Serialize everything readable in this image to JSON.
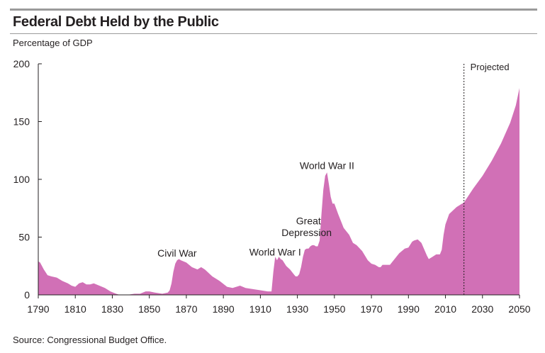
{
  "header": {
    "title": "Federal Debt Held by the Public",
    "subtitle": "Percentage of GDP"
  },
  "footer": {
    "source": "Source: Congressional Budget Office."
  },
  "colors": {
    "area_fill": "#d170b6",
    "axis": "#231f20",
    "rule": "#9b9b9b"
  },
  "chart_data": {
    "type": "area",
    "title": "Federal Debt Held by the Public",
    "ylabel": "Percentage of GDP",
    "xlabel": "",
    "xlim": [
      1790,
      2050
    ],
    "ylim": [
      0,
      200
    ],
    "x_ticks": [
      1790,
      1810,
      1830,
      1850,
      1870,
      1890,
      1910,
      1930,
      1950,
      1970,
      1990,
      2010,
      2030,
      2050
    ],
    "y_ticks": [
      0,
      50,
      100,
      150,
      200
    ],
    "grid": false,
    "projection_start": 2020,
    "projection_label": "Projected",
    "annotations": [
      {
        "label": "Civil War",
        "x": 1865,
        "y": 33
      },
      {
        "label": "World War I",
        "x": 1918,
        "y": 34
      },
      {
        "label": "Great",
        "x": 1936,
        "y": 61
      },
      {
        "label": "Depression",
        "x": 1935,
        "y": 51
      },
      {
        "label": "World War II",
        "x": 1946,
        "y": 109
      }
    ],
    "series": [
      {
        "name": "Federal Debt Held by the Public",
        "x": [
          1790,
          1791,
          1793,
          1795,
          1797,
          1800,
          1803,
          1806,
          1808,
          1810,
          1812,
          1814,
          1816,
          1818,
          1820,
          1823,
          1826,
          1829,
          1832,
          1834,
          1838,
          1842,
          1845,
          1848,
          1850,
          1853,
          1857,
          1860,
          1861,
          1862,
          1863,
          1864,
          1865,
          1866,
          1867,
          1870,
          1873,
          1876,
          1878,
          1880,
          1884,
          1888,
          1892,
          1895,
          1899,
          1902,
          1906,
          1910,
          1914,
          1916,
          1917,
          1918,
          1919,
          1920,
          1921,
          1922,
          1924,
          1926,
          1928,
          1929,
          1930,
          1931,
          1932,
          1933,
          1934,
          1935,
          1936,
          1937,
          1938,
          1939,
          1940,
          1941,
          1942,
          1943,
          1944,
          1945,
          1946,
          1947,
          1948,
          1949,
          1950,
          1952,
          1955,
          1958,
          1960,
          1962,
          1965,
          1968,
          1970,
          1972,
          1974,
          1975,
          1976,
          1978,
          1980,
          1982,
          1985,
          1988,
          1990,
          1992,
          1993,
          1995,
          1997,
          2000,
          2001,
          2003,
          2005,
          2007,
          2008,
          2009,
          2010,
          2012,
          2014,
          2016,
          2018,
          2020,
          2025,
          2030,
          2035,
          2040,
          2045,
          2048,
          2050
        ],
        "values": [
          29,
          28,
          22,
          17,
          16,
          15,
          12,
          10,
          8,
          7,
          10,
          11,
          9,
          9,
          10,
          8,
          6,
          3,
          1,
          0,
          0,
          1,
          1,
          3,
          3,
          2,
          1,
          2,
          4,
          10,
          20,
          27,
          30,
          31,
          30,
          28,
          24,
          22,
          24,
          22,
          16,
          12,
          7,
          6,
          8,
          6,
          5,
          4,
          3,
          3,
          20,
          33,
          30,
          33,
          31,
          30,
          25,
          22,
          18,
          16,
          16,
          18,
          24,
          33,
          39,
          40,
          40,
          42,
          43,
          43,
          42,
          42,
          47,
          70,
          91,
          103,
          106,
          96,
          85,
          79,
          79,
          70,
          58,
          52,
          45,
          43,
          38,
          30,
          27,
          26,
          24,
          24,
          26,
          26,
          26,
          30,
          36,
          40,
          41,
          46,
          47,
          48,
          45,
          34,
          31,
          33,
          35,
          35,
          39,
          52,
          61,
          70,
          73,
          76,
          78,
          80,
          92,
          103,
          116,
          131,
          149,
          164,
          179
        ]
      }
    ]
  }
}
